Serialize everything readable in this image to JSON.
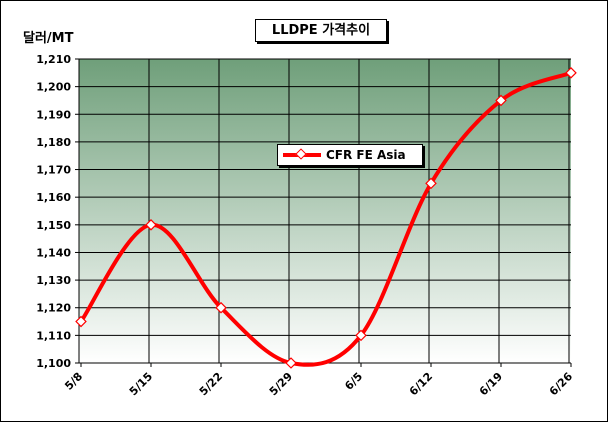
{
  "chart_data": {
    "type": "line",
    "title": "LLDPE 가격추이",
    "ylabel": "달러/MT",
    "xlabel": "",
    "categories": [
      "5/8",
      "5/15",
      "5/22",
      "5/29",
      "6/5",
      "6/12",
      "6/19",
      "6/26"
    ],
    "series": [
      {
        "name": "CFR FE Asia",
        "values": [
          1115,
          1150,
          1120,
          1100,
          1110,
          1165,
          1195,
          1205
        ]
      }
    ],
    "ylim": [
      1100,
      1210
    ],
    "yticks": [
      1100,
      1110,
      1120,
      1130,
      1140,
      1150,
      1160,
      1170,
      1180,
      1190,
      1200,
      1210
    ],
    "ytick_labels": [
      "1,100",
      "1,110",
      "1,120",
      "1,130",
      "1,140",
      "1,150",
      "1,160",
      "1,170",
      "1,180",
      "1,190",
      "1,200",
      "1,210"
    ],
    "grid": true,
    "legend_position": "center",
    "colors": {
      "series": "#ff0000",
      "plot_bg_top": "#6f9f7a",
      "plot_bg_bottom": "#ffffff",
      "gridline": "#000000"
    }
  }
}
